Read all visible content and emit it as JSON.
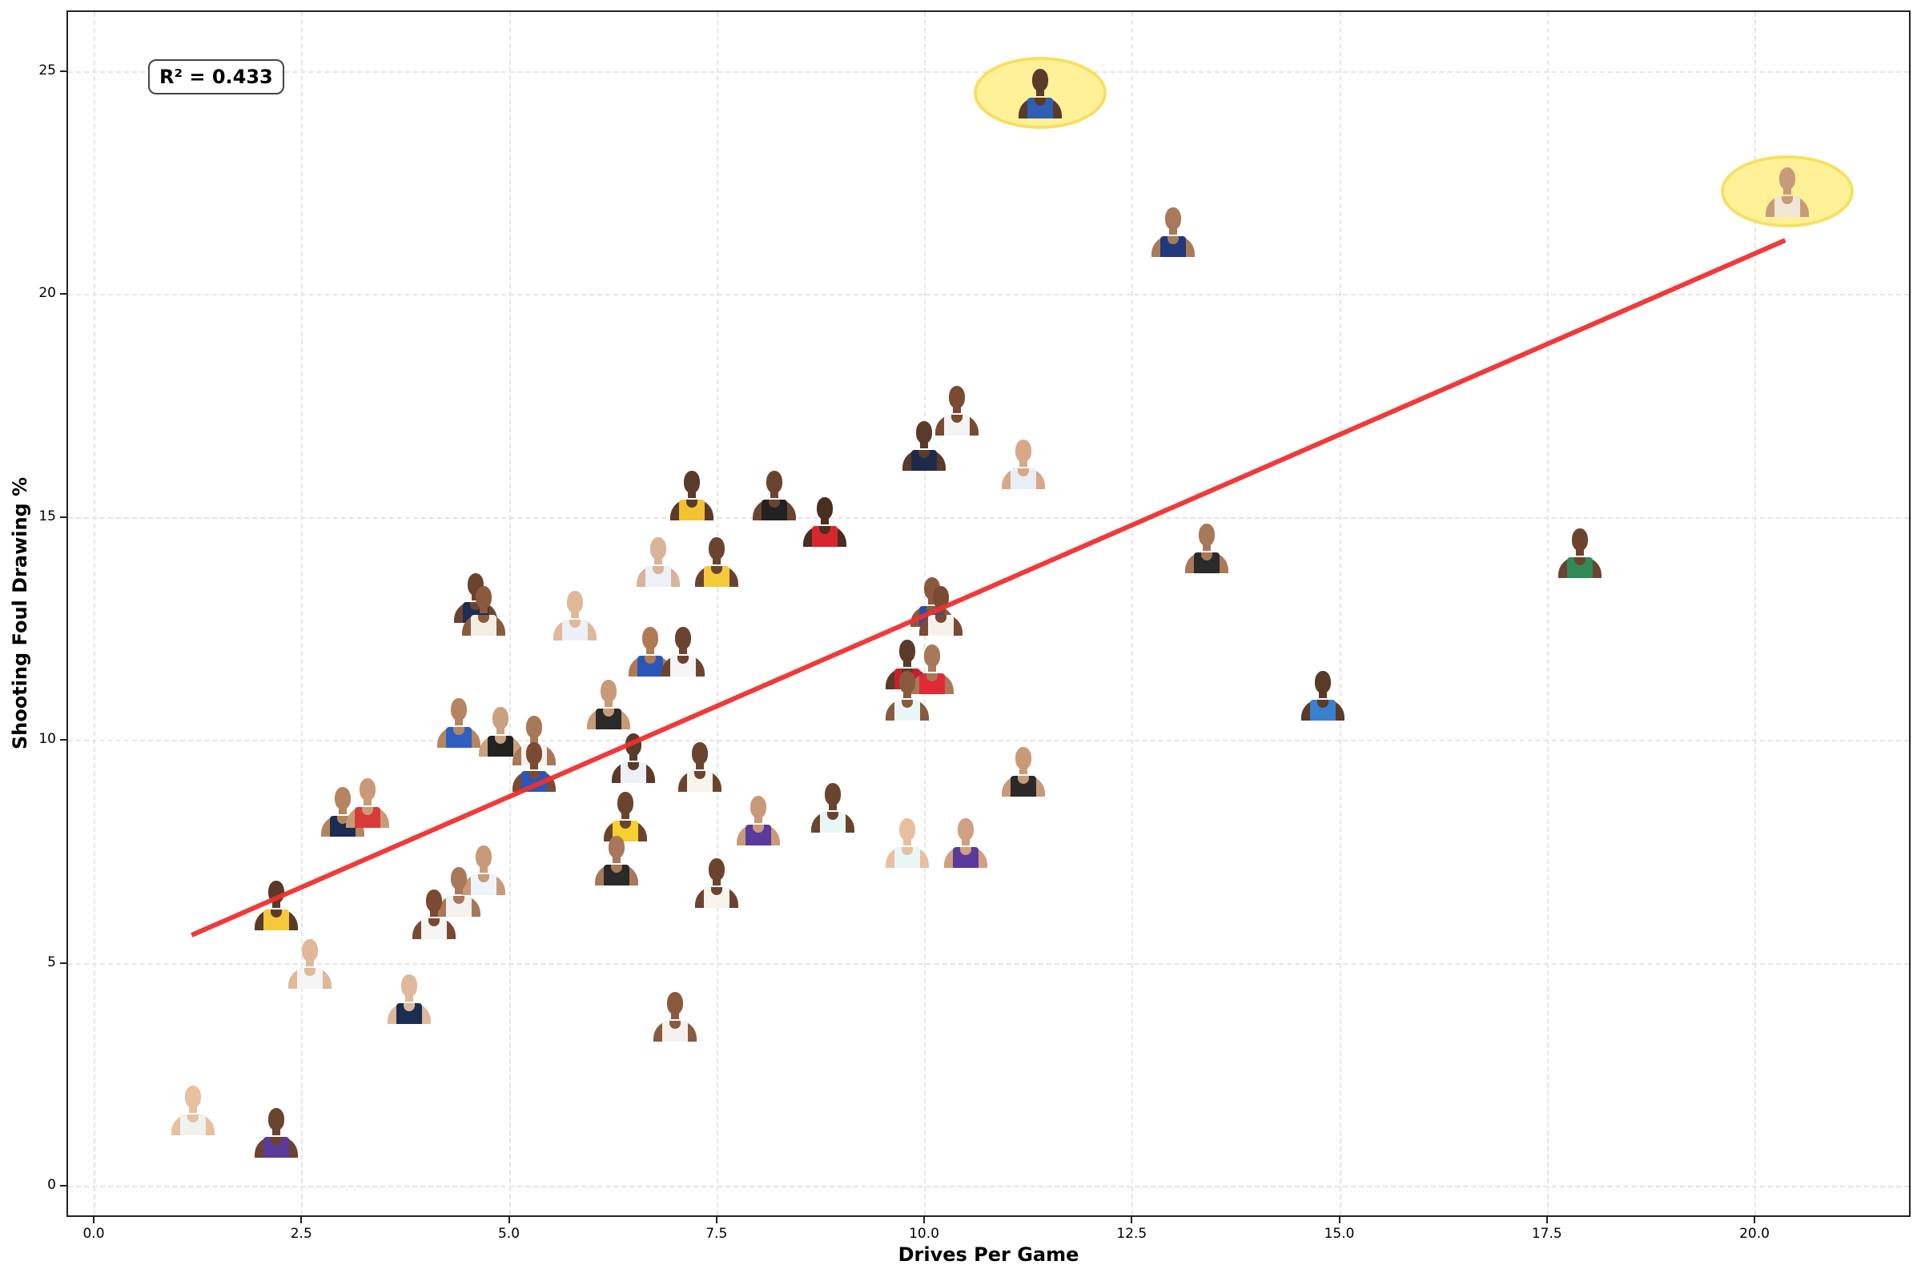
{
  "chart_data": {
    "type": "scatter",
    "title": "",
    "xlabel": "Drives Per Game",
    "ylabel": "Shooting Foul Drawing %",
    "xlim": [
      -0.35,
      21.85
    ],
    "ylim": [
      -0.7,
      26.3
    ],
    "x_ticks": [
      "0.0",
      "2.5",
      "5.0",
      "7.5",
      "10.0",
      "12.5",
      "15.0",
      "17.5",
      "20.0"
    ],
    "x_tick_values": [
      0,
      2.5,
      5,
      7.5,
      10,
      12.5,
      15,
      17.5,
      20
    ],
    "y_ticks": [
      "0",
      "5",
      "10",
      "15",
      "20",
      "25"
    ],
    "y_tick_values": [
      0,
      5,
      10,
      15,
      20,
      25
    ],
    "grid": true,
    "marker": "player headshot images",
    "annotation": "R² = 0.433",
    "regression_line": {
      "color": "#f03030",
      "x": [
        1.18,
        20.37
      ],
      "y": [
        5.62,
        21.2
      ]
    },
    "highlighted_points": [
      {
        "x": 11.4,
        "y": 24.5
      },
      {
        "x": 20.4,
        "y": 22.3
      }
    ],
    "points": [
      {
        "x": 11.4,
        "y": 24.5,
        "jersey": "#2f5fb3",
        "skin": "#5b3a29",
        "highlight": true
      },
      {
        "x": 20.4,
        "y": 22.3,
        "jersey": "#efe6d8",
        "skin": "#c99a78",
        "highlight": true
      },
      {
        "x": 13.0,
        "y": 21.4,
        "jersey": "#1f3a7a",
        "skin": "#a87a5a"
      },
      {
        "x": 10.4,
        "y": 17.4,
        "jersey": "#f4f4f4",
        "skin": "#7a4a32"
      },
      {
        "x": 10.0,
        "y": 16.6,
        "jersey": "#1e2a4a",
        "skin": "#5a3a28"
      },
      {
        "x": 11.2,
        "y": 16.2,
        "jersey": "#e8eef6",
        "skin": "#d8a888"
      },
      {
        "x": 7.2,
        "y": 15.5,
        "jersey": "#f2c230",
        "skin": "#5a3a28"
      },
      {
        "x": 8.2,
        "y": 15.5,
        "jersey": "#222222",
        "skin": "#6b4430"
      },
      {
        "x": 8.8,
        "y": 14.9,
        "jersey": "#d8262e",
        "skin": "#4a2e20"
      },
      {
        "x": 6.8,
        "y": 14.0,
        "jersey": "#eef0f8",
        "skin": "#d9b39a"
      },
      {
        "x": 7.5,
        "y": 14.0,
        "jersey": "#f5c93a",
        "skin": "#6b4430"
      },
      {
        "x": 13.4,
        "y": 14.3,
        "jersey": "#2a2a2a",
        "skin": "#a8785a"
      },
      {
        "x": 17.9,
        "y": 14.2,
        "jersey": "#2e8b57",
        "skin": "#6b4430"
      },
      {
        "x": 4.6,
        "y": 13.2,
        "jersey": "#1c2d52",
        "skin": "#6b4430"
      },
      {
        "x": 4.7,
        "y": 12.9,
        "jersey": "#f2eee4",
        "skin": "#8a5a3e"
      },
      {
        "x": 5.8,
        "y": 12.8,
        "jersey": "#eef0f8",
        "skin": "#e0b89a"
      },
      {
        "x": 10.1,
        "y": 13.1,
        "jersey": "#2a4fa0",
        "skin": "#8a5a3e"
      },
      {
        "x": 10.2,
        "y": 12.9,
        "jersey": "#f5f2ee",
        "skin": "#7a4a32"
      },
      {
        "x": 6.7,
        "y": 12.0,
        "jersey": "#2a56b8",
        "skin": "#b07a55"
      },
      {
        "x": 7.1,
        "y": 12.0,
        "jersey": "#f5f5f5",
        "skin": "#6b4430"
      },
      {
        "x": 9.8,
        "y": 11.7,
        "jersey": "#c8202a",
        "skin": "#5a3a28"
      },
      {
        "x": 10.1,
        "y": 11.6,
        "jersey": "#e02a35",
        "skin": "#a8785a"
      },
      {
        "x": 9.8,
        "y": 11.0,
        "jersey": "#e8f6f6",
        "skin": "#8a5a3e"
      },
      {
        "x": 14.8,
        "y": 11.0,
        "jersey": "#3a7fd0",
        "skin": "#5a3a28"
      },
      {
        "x": 4.4,
        "y": 10.4,
        "jersey": "#2f5fc0",
        "skin": "#b58560"
      },
      {
        "x": 6.2,
        "y": 10.8,
        "jersey": "#2a2a2a",
        "skin": "#c99a78"
      },
      {
        "x": 4.9,
        "y": 10.2,
        "jersey": "#222222",
        "skin": "#c9a080"
      },
      {
        "x": 5.3,
        "y": 10.0,
        "jersey": "#f4f2ee",
        "skin": "#a8785a"
      },
      {
        "x": 5.3,
        "y": 9.4,
        "jersey": "#2a56b8",
        "skin": "#7a4a32"
      },
      {
        "x": 6.5,
        "y": 9.6,
        "jersey": "#eef0f8",
        "skin": "#5a3a28"
      },
      {
        "x": 7.3,
        "y": 9.4,
        "jersey": "#f7f4ec",
        "skin": "#6b4430"
      },
      {
        "x": 11.2,
        "y": 9.3,
        "jersey": "#2a2a2a",
        "skin": "#c99a78"
      },
      {
        "x": 3.0,
        "y": 8.4,
        "jersey": "#1c2d52",
        "skin": "#b58560"
      },
      {
        "x": 3.3,
        "y": 8.6,
        "jersey": "#d83a3a",
        "skin": "#c99a78"
      },
      {
        "x": 6.4,
        "y": 8.3,
        "jersey": "#f5d030",
        "skin": "#6b4430"
      },
      {
        "x": 8.0,
        "y": 8.2,
        "jersey": "#5a3a9a",
        "skin": "#c99a78"
      },
      {
        "x": 8.9,
        "y": 8.5,
        "jersey": "#e8f6f6",
        "skin": "#6b4430"
      },
      {
        "x": 9.8,
        "y": 7.7,
        "jersey": "#e8f6f6",
        "skin": "#e8c0a0"
      },
      {
        "x": 10.5,
        "y": 7.7,
        "jersey": "#5a3a9a",
        "skin": "#d0a080"
      },
      {
        "x": 6.3,
        "y": 7.3,
        "jersey": "#2a2a2a",
        "skin": "#a8785a"
      },
      {
        "x": 4.7,
        "y": 7.1,
        "jersey": "#eef4fb",
        "skin": "#c99a78"
      },
      {
        "x": 4.4,
        "y": 6.6,
        "jersey": "#f4f2ee",
        "skin": "#a8785a"
      },
      {
        "x": 4.1,
        "y": 6.1,
        "jersey": "#f5f5f5",
        "skin": "#7a4a32"
      },
      {
        "x": 7.5,
        "y": 6.8,
        "jersey": "#f7f4ec",
        "skin": "#6b4430"
      },
      {
        "x": 2.2,
        "y": 6.3,
        "jersey": "#f5c93a",
        "skin": "#5a3a28"
      },
      {
        "x": 2.6,
        "y": 5.0,
        "jersey": "#f5f5f5",
        "skin": "#e0b89a"
      },
      {
        "x": 3.8,
        "y": 4.2,
        "jersey": "#1c2d52",
        "skin": "#e0b89a"
      },
      {
        "x": 7.0,
        "y": 3.8,
        "jersey": "#f5f2ee",
        "skin": "#8a5a3e"
      },
      {
        "x": 1.2,
        "y": 1.7,
        "jersey": "#f0f2ee",
        "skin": "#e8c0a0"
      },
      {
        "x": 2.2,
        "y": 1.2,
        "jersey": "#5a3a9a",
        "skin": "#6b4430"
      }
    ]
  },
  "labels": {
    "xlabel": "Drives Per Game",
    "ylabel": "Shooting Foul Drawing %",
    "r2": "R² = 0.433"
  },
  "colors": {
    "regression": "#f03030",
    "highlight_fill": "#fff08f",
    "highlight_border": "#f7dd55",
    "grid": "#e6e6e6",
    "axis": "#222222"
  }
}
